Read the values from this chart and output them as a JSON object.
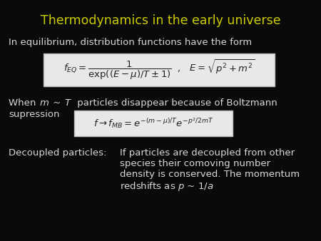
{
  "title": "Thermodynamics in the early universe",
  "title_color": "#cccc00",
  "title_fontsize": 12.5,
  "background_color": "#0a0a0a",
  "text_color": "#d8d8d8",
  "body_fontsize": 9.5,
  "eq_text_color": "#222222",
  "eq_box_edge": "#bbbbbb",
  "eq_box_fill": "#e8e8e8",
  "eq1_text": "$f_{EQ} = \\dfrac{1}{\\exp((E-\\mu)/T \\pm 1)}$  ,   $E = \\sqrt{p^2 + m^2}$",
  "eq2_text": "$f \\rightarrow f_{MB} = e^{-(m-\\mu)/T} e^{-p^2/2mT}$"
}
